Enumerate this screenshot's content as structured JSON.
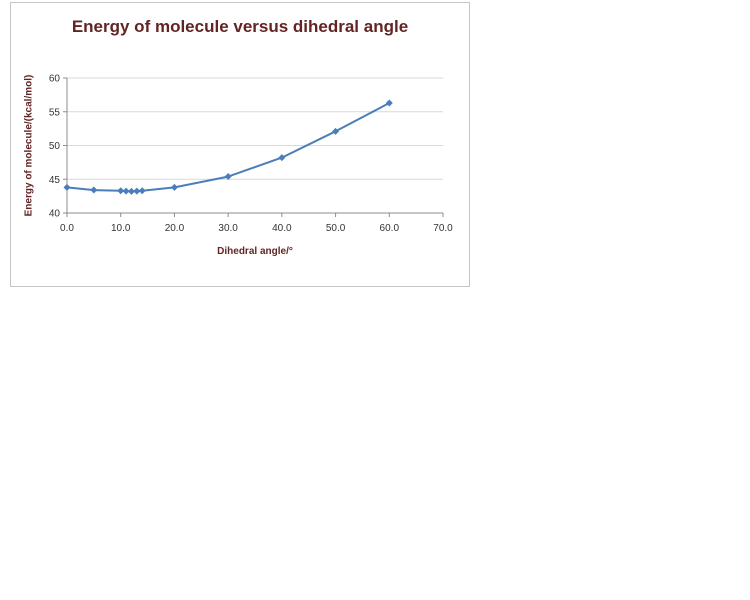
{
  "chart_data": {
    "type": "line",
    "title": "Energy of molecule versus dihedral angle",
    "xlabel": "Dihedral angle/°",
    "ylabel": "Energy of molecule/(kcal/mol)",
    "x": [
      0.0,
      5.0,
      10.0,
      11.0,
      12.0,
      13.0,
      14.0,
      20.0,
      30.0,
      40.0,
      50.0,
      60.0
    ],
    "y": [
      43.8,
      43.4,
      43.3,
      43.25,
      43.2,
      43.25,
      43.3,
      43.8,
      45.4,
      48.2,
      52.1,
      56.3
    ],
    "xlim": [
      0,
      70
    ],
    "ylim": [
      40,
      60
    ],
    "x_ticks": [
      "0.0",
      "10.0",
      "20.0",
      "30.0",
      "40.0",
      "50.0",
      "60.0",
      "70.0"
    ],
    "x_tick_values": [
      0,
      10,
      20,
      30,
      40,
      50,
      60,
      70
    ],
    "y_ticks": [
      "40",
      "45",
      "50",
      "55",
      "60"
    ],
    "y_tick_values": [
      40,
      45,
      50,
      55,
      60
    ],
    "grid": true,
    "legend": "none",
    "marker": "diamond",
    "colors": {
      "series": "#4a7ebb",
      "title": "#632423",
      "axis_title": "#632423",
      "tick_label": "#333333",
      "axis_line": "#8c8c8c",
      "gridline": "#d9d9d9"
    }
  }
}
